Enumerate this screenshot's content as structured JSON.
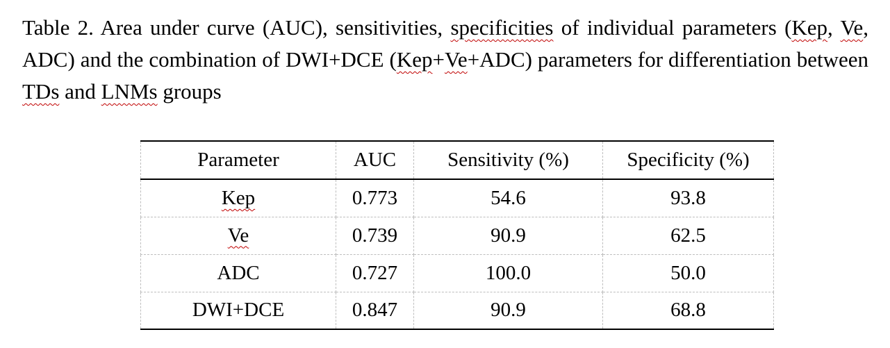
{
  "document": {
    "colors": {
      "page_background": "#ffffff",
      "text": "#000000",
      "rule_black": "#000000",
      "grid_gray": "#bdbdbd",
      "squiggle_red": "#c00000"
    },
    "caption": {
      "label": "Table 2.",
      "lines": [
        {
          "justify": true,
          "segments": [
            {
              "text": "Table 2. Area under curve (AUC), sensitivities, "
            },
            {
              "text": "specificities",
              "misspelled": true
            },
            {
              "text": " of individual parameters ("
            },
            {
              "text": "Kep",
              "misspelled": true
            },
            {
              "text": ", "
            },
            {
              "text": "Ve",
              "misspelled": true
            },
            {
              "text": ","
            }
          ]
        },
        {
          "justify": true,
          "segments": [
            {
              "text": "ADC) and the combination of DWI+DCE ("
            },
            {
              "text": "Kep",
              "misspelled": true
            },
            {
              "text": "+"
            },
            {
              "text": "Ve",
              "misspelled": true
            },
            {
              "text": "+ADC) parameters for differentiation between"
            }
          ]
        },
        {
          "justify": false,
          "segments": [
            {
              "text": "TDs",
              "misspelled": true
            },
            {
              "text": " and "
            },
            {
              "text": "LNMs",
              "misspelled": true
            },
            {
              "text": " groups"
            }
          ]
        }
      ]
    },
    "table": {
      "headers": [
        "Parameter",
        "AUC",
        "Sensitivity (%)",
        "Specificity (%)"
      ],
      "rows": [
        {
          "cells": [
            "Kep",
            "0.773",
            "54.6",
            "93.8"
          ],
          "parameter_misspelled": true
        },
        {
          "cells": [
            "Ve",
            "0.739",
            "90.9",
            "62.5"
          ],
          "parameter_misspelled": true
        },
        {
          "cells": [
            "ADC",
            "0.727",
            "100.0",
            "50.0"
          ],
          "parameter_misspelled": false
        },
        {
          "cells": [
            "DWI+DCE",
            "0.847",
            "90.9",
            "68.8"
          ],
          "parameter_misspelled": false
        }
      ]
    }
  }
}
